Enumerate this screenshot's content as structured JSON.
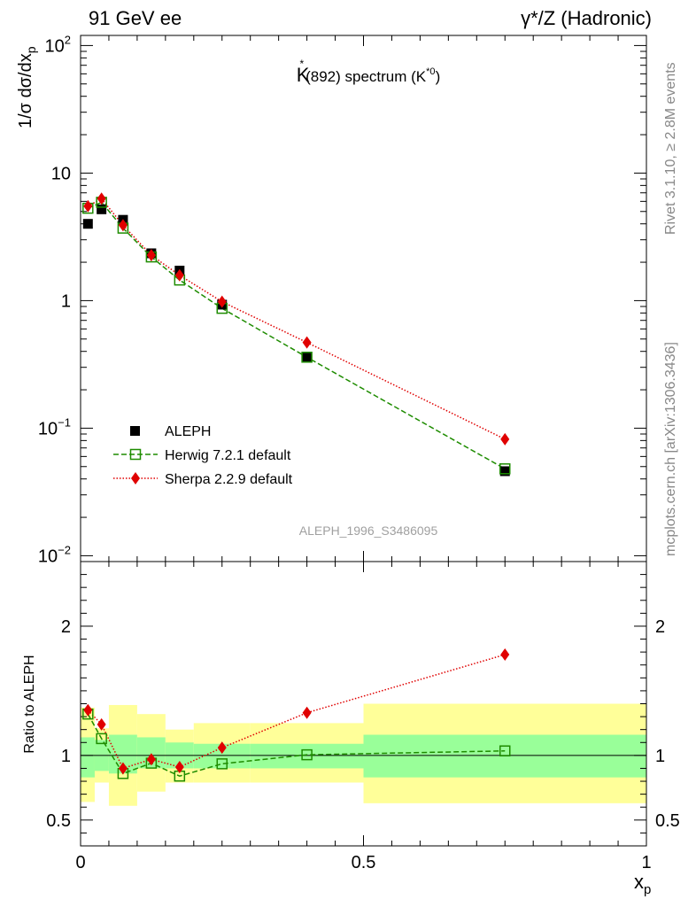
{
  "header": {
    "left": "91 GeV ee",
    "right": "γ*/Z (Hadronic)"
  },
  "side_notes": {
    "rivet": "Rivet 3.1.10, ≥ 2.8M events",
    "mcplots": "mcplots.cern.ch [arXiv:1306.3436]"
  },
  "watermark": "ALEPH_1996_S3486095",
  "plot_title": {
    "main": "K",
    "sup": "*",
    "mid": "(892) spectrum (K",
    "sup2": "*0",
    "end": ")"
  },
  "ylabel_main": "1/σ dσ/dx",
  "ylabel_sub": "p",
  "ylabel_ratio": "Ratio to ALEPH",
  "xlabel_main": "x",
  "xlabel_sub": "p",
  "colors": {
    "data": "#000000",
    "herwig": "#1e8c00",
    "sherpa": "#e00000",
    "band_inner": "#99ff99",
    "band_outer": "#ffff99"
  },
  "chart_data": {
    "type": "scatter",
    "x": [
      0.013,
      0.037,
      0.075,
      0.125,
      0.175,
      0.25,
      0.4,
      0.75
    ],
    "x_edges": [
      0.0,
      0.025,
      0.05,
      0.1,
      0.15,
      0.2,
      0.3,
      0.5,
      1.0
    ],
    "xlim": [
      0,
      1
    ],
    "x_ticks": [
      {
        "v": 0,
        "label": "0"
      },
      {
        "v": 0.5,
        "label": "0.5"
      },
      {
        "v": 1,
        "label": "1"
      }
    ],
    "main": {
      "yscale": "log",
      "ylim": [
        0.009,
        120
      ],
      "y_ticks": [
        {
          "v": 0.01,
          "base": "10",
          "exp": "−2"
        },
        {
          "v": 0.1,
          "base": "10",
          "exp": "−1"
        },
        {
          "v": 1,
          "base": "1",
          "exp": ""
        },
        {
          "v": 10,
          "base": "10",
          "exp": ""
        },
        {
          "v": 100,
          "base": "10",
          "exp": "2"
        }
      ],
      "series": [
        {
          "name": "ALEPH",
          "style": "data",
          "values": [
            4.0,
            5.2,
            4.3,
            2.35,
            1.72,
            0.93,
            0.36,
            0.046
          ]
        },
        {
          "name": "Herwig 7.2.1 default",
          "style": "herwig",
          "values": [
            5.3,
            5.9,
            3.7,
            2.2,
            1.45,
            0.87,
            0.36,
            0.048
          ]
        },
        {
          "name": "Sherpa 2.2.9 default",
          "style": "sherpa",
          "values": [
            5.5,
            6.3,
            3.9,
            2.27,
            1.58,
            0.98,
            0.47,
            0.082
          ]
        }
      ]
    },
    "ratio": {
      "ylim": [
        0.3,
        2.5
      ],
      "y_ticks": [
        {
          "v": 0.5,
          "label": "0.5"
        },
        {
          "v": 1,
          "label": "1"
        },
        {
          "v": 2,
          "label": "2"
        }
      ],
      "band_inner_low": [
        0.83,
        0.88,
        0.86,
        0.9,
        0.9,
        0.9,
        0.9,
        0.83
      ],
      "band_inner_high": [
        1.14,
        1.12,
        1.16,
        1.14,
        1.1,
        1.09,
        1.09,
        1.16
      ],
      "band_outer_low": [
        0.64,
        0.79,
        0.61,
        0.72,
        0.79,
        0.79,
        0.79,
        0.63
      ],
      "band_outer_high": [
        1.37,
        1.21,
        1.39,
        1.32,
        1.2,
        1.25,
        1.25,
        1.4
      ],
      "series": [
        {
          "name": "Herwig 7.2.1 default",
          "style": "herwig",
          "values": [
            1.32,
            1.13,
            0.86,
            0.94,
            0.84,
            0.935,
            1.005,
            1.035
          ]
        },
        {
          "name": "Sherpa 2.2.9 default",
          "style": "sherpa",
          "values": [
            1.35,
            1.24,
            0.9,
            0.97,
            0.91,
            1.06,
            1.33,
            1.78
          ]
        }
      ]
    }
  }
}
